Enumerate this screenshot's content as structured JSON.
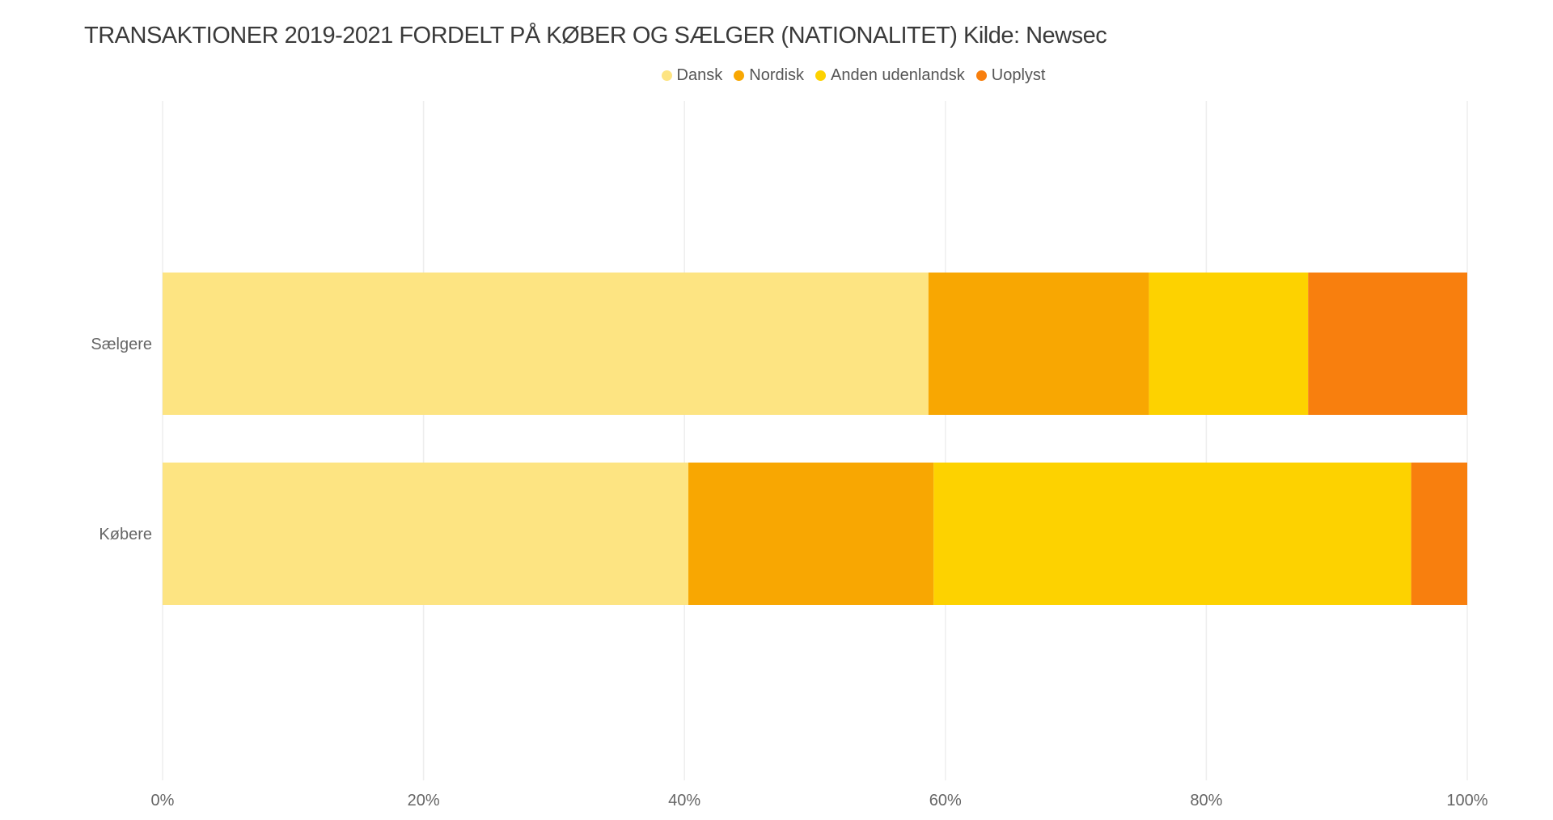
{
  "title": "TRANSAKTIONER 2019-2021 FORDELT PÅ KØBER OG SÆLGER (NATIONALITET) Kilde: Newsec",
  "chart_data": {
    "type": "bar",
    "orientation": "horizontal",
    "stacked": true,
    "categories": [
      "Sælgere",
      "Købere"
    ],
    "series": [
      {
        "name": "Dansk",
        "color": "#FDE482",
        "values": [
          58.7,
          40.3
        ]
      },
      {
        "name": "Nordisk",
        "color": "#F8A702",
        "values": [
          16.9,
          18.8
        ]
      },
      {
        "name": "Anden udenlandsk",
        "color": "#FDD200",
        "values": [
          12.2,
          36.6
        ]
      },
      {
        "name": "Uoplyst",
        "color": "#F87F0E",
        "values": [
          12.2,
          4.3
        ]
      }
    ],
    "xticks": [
      "0%",
      "20%",
      "40%",
      "60%",
      "80%",
      "100%"
    ],
    "xlim": [
      0,
      100
    ],
    "grid": true,
    "legend": "top-center"
  }
}
